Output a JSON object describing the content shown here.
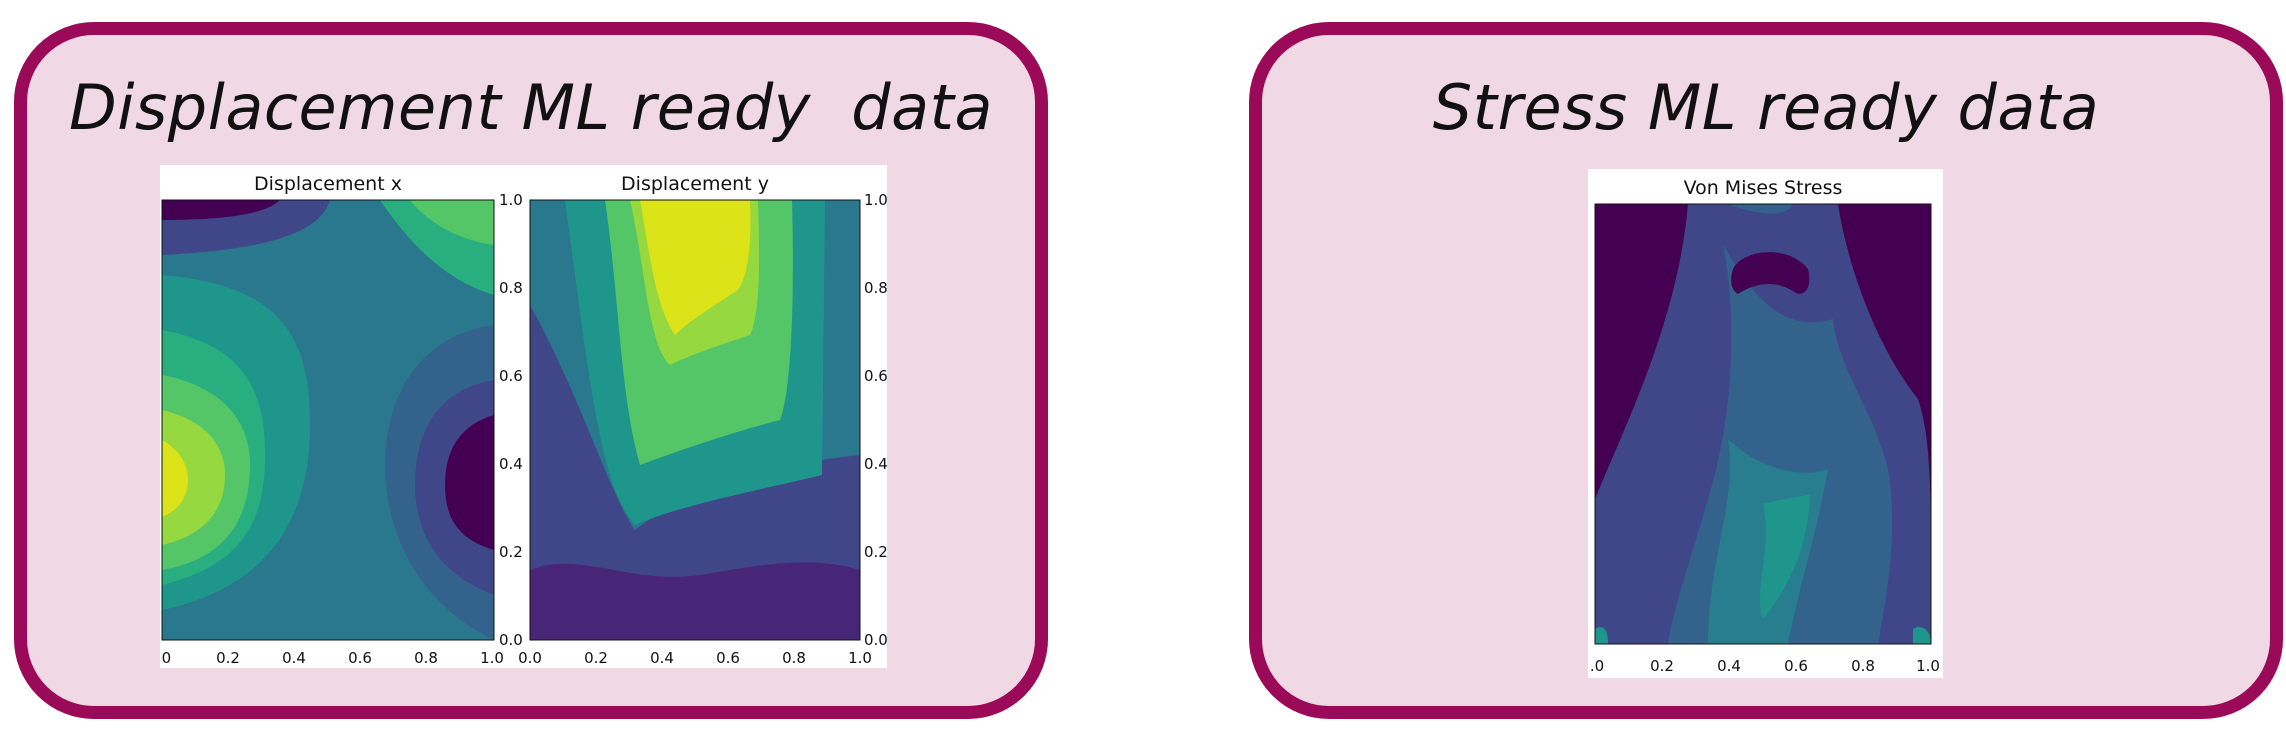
{
  "displacement_panel": {
    "title": "Displacement ML ready  data"
  },
  "stress_panel": {
    "title": "Stress ML ready data"
  },
  "colors": {
    "panel_border": "#9b0a59",
    "panel_fill": "#f1d8e5",
    "viridis_levels": [
      "#440154",
      "#482677",
      "#404788",
      "#33638d",
      "#287d8e",
      "#1f968b",
      "#29af7f",
      "#55c667",
      "#95d840",
      "#dce319"
    ]
  },
  "chart_data": [
    {
      "type": "heatmap",
      "title": "Displacement x",
      "x_ticks": [
        ".0",
        "0.2",
        "0.4",
        "0.6",
        "0.8",
        "1.0"
      ],
      "xlim": [
        0,
        1
      ],
      "ylim": [
        0,
        1
      ]
    },
    {
      "type": "heatmap",
      "title": "Displacement y",
      "x_ticks": [
        "0.0",
        "0.2",
        "0.4",
        "0.6",
        "0.8",
        "1.0"
      ],
      "y_ticks_left": [
        "0.0",
        "0.2",
        "0.4",
        "0.6",
        "0.8",
        "1.0"
      ],
      "y_ticks_right": [
        "0.0",
        "0.2",
        "0.4",
        "0.6",
        "0.8",
        "1.0"
      ],
      "xlim": [
        0,
        1
      ],
      "ylim": [
        0,
        1
      ]
    },
    {
      "type": "heatmap",
      "title": "Von Mises Stress",
      "x_ticks": [
        ".0",
        "0.2",
        "0.4",
        "0.6",
        "0.8",
        "1.0"
      ],
      "xlim": [
        0,
        1
      ],
      "ylim": [
        0,
        1
      ]
    }
  ]
}
